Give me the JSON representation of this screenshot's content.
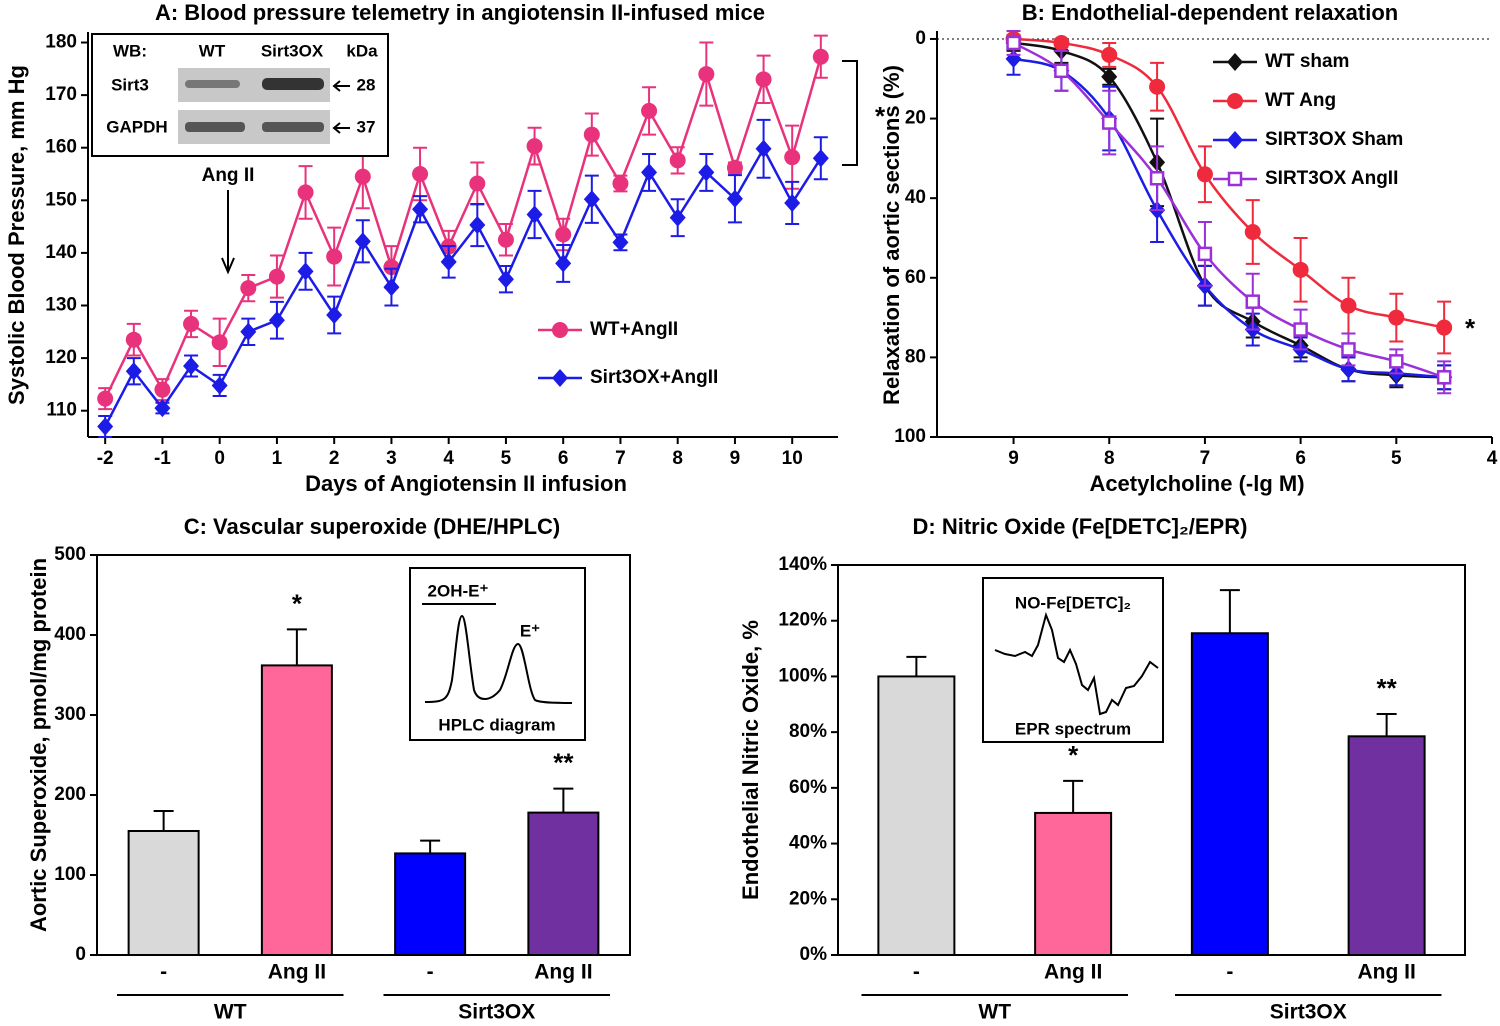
{
  "chart_data": [
    {
      "type": "line",
      "title": "A: Blood pressure telemetry in angiotensin II-infused mice",
      "x_label": "Days of Angiotensin II infusion",
      "y_label": "Systolic Blood Pressure, mm Hg",
      "x": [
        -2,
        -1.5,
        -1,
        -0.5,
        0,
        0.5,
        1,
        1.5,
        2,
        2.5,
        3,
        3.5,
        4,
        4.5,
        5,
        5.5,
        6,
        6.5,
        7,
        7.5,
        8,
        8.5,
        9,
        9.5,
        10,
        10.5
      ],
      "xlim": [
        -2.3,
        10.8
      ],
      "xticks": [
        -2,
        -1,
        0,
        1,
        2,
        3,
        4,
        5,
        6,
        7,
        8,
        9,
        10
      ],
      "ylim": [
        105,
        182
      ],
      "yticks": [
        110,
        120,
        130,
        140,
        150,
        160,
        170,
        180
      ],
      "series": [
        {
          "name": "WT+AngII",
          "color": "#e8327c",
          "marker": "circle",
          "values": [
            112.3,
            123.5,
            114,
            126.5,
            123,
            133.3,
            135.5,
            151.5,
            139.3,
            154.5,
            137.3,
            155,
            141.2,
            153.2,
            142.5,
            160.3,
            143.5,
            162.5,
            153.2,
            167,
            157.6,
            174,
            156.2,
            173,
            158.2,
            177.3
          ],
          "errors": [
            2,
            3,
            2,
            2.5,
            4.5,
            2.5,
            4,
            5,
            5.5,
            6,
            4,
            5,
            3,
            4,
            3,
            3.5,
            3,
            4,
            1.5,
            4.5,
            2.5,
            6,
            1,
            4.5,
            6,
            4
          ]
        },
        {
          "name": "Sirt3OX+AngII",
          "color": "#1c1ce6",
          "marker": "diamond",
          "values": [
            107,
            117.5,
            110.5,
            118.5,
            114.8,
            125,
            127.2,
            136.5,
            128.2,
            142.2,
            133.5,
            148.3,
            138.3,
            145.3,
            135,
            147.3,
            138,
            150.2,
            142,
            155.3,
            146.7,
            155.3,
            150.3,
            159.8,
            149.5,
            158
          ],
          "errors": [
            2,
            2.5,
            1,
            2,
            2,
            2.5,
            3.5,
            3.5,
            3.5,
            4,
            3.5,
            2.5,
            3,
            4,
            2.5,
            4.5,
            3.5,
            4.5,
            1.5,
            3.5,
            3.5,
            3.5,
            4.5,
            5.5,
            4,
            4
          ]
        }
      ],
      "arrow_label": "Ang II",
      "significance": "*",
      "inset": {
        "header": [
          "WB:",
          "WT",
          "Sirt3OX",
          "kDa"
        ],
        "rows": [
          [
            "Sirt3",
            "28"
          ],
          [
            "GAPDH",
            "37"
          ]
        ]
      }
    },
    {
      "type": "line",
      "title": "B: Endothelial-dependent relaxation",
      "x_label": "Acetylcholine (-lg M)",
      "y_label": "Relaxation of aortic sections (%)",
      "x": [
        9,
        8.5,
        8,
        7.5,
        7,
        6.5,
        6,
        5.5,
        5,
        4.5
      ],
      "xlim": [
        9.8,
        4
      ],
      "xticks": [
        9,
        8,
        7,
        6,
        5,
        4
      ],
      "ylim": [
        100,
        -2
      ],
      "yticks": [
        0,
        20,
        40,
        60,
        80,
        100
      ],
      "series": [
        {
          "name": "WT sham",
          "color": "#111111",
          "marker": "diamond",
          "values": [
            1,
            3,
            9.5,
            31,
            62,
            71,
            77,
            83,
            84.5,
            85
          ],
          "errors": [
            2,
            3,
            2,
            11,
            5,
            4,
            3,
            3,
            3,
            3
          ]
        },
        {
          "name": "WT  Ang",
          "color": "#ee2a3c",
          "marker": "circle",
          "values": [
            0,
            1,
            4,
            12,
            34,
            48.5,
            58,
            67,
            70,
            72.5
          ],
          "errors": [
            1,
            1,
            3,
            6,
            7,
            8,
            8,
            7,
            6,
            6.5
          ]
        },
        {
          "name": "SIRT3OX Sham",
          "color": "#1c1ce6",
          "marker": "diamond",
          "values": [
            5,
            8,
            20,
            43,
            62,
            73,
            78,
            83,
            84,
            85
          ],
          "errors": [
            4,
            5,
            8,
            8,
            5,
            4,
            3,
            3,
            3,
            3
          ]
        },
        {
          "name": "SIRT3OX AngII",
          "color": "#9b30d9",
          "marker": "square-open",
          "values": [
            1,
            8,
            21,
            35,
            54,
            66,
            73,
            78,
            81,
            85
          ],
          "errors": [
            3,
            5,
            8,
            8,
            8,
            7,
            5,
            4,
            3,
            4
          ]
        }
      ],
      "significance": "*"
    },
    {
      "type": "bar",
      "title": "C: Vascular superoxide (DHE/HPLC)",
      "y_label": "Aortic Superoxide, pmol/mg protein",
      "categories": [
        "-",
        "Ang II",
        "-",
        "Ang II"
      ],
      "groups": [
        {
          "name": "WT",
          "color": "#000000"
        },
        {
          "name": "Sirt3OX",
          "color": "#1c1ce6"
        }
      ],
      "values": [
        155,
        362,
        127,
        178
      ],
      "errors": [
        25,
        45,
        16,
        30
      ],
      "colors": [
        "#d9d9d9",
        "#ff6699",
        "#0000ff",
        "#7030a0"
      ],
      "significance": [
        null,
        "*",
        null,
        "**"
      ],
      "ylim": [
        0,
        500
      ],
      "yticks": [
        0,
        100,
        200,
        300,
        400,
        500
      ],
      "inset": {
        "title": "2OH-E⁺",
        "peak": "E⁺",
        "caption": "HPLC diagram"
      }
    },
    {
      "type": "bar",
      "title": "D: Nitric Oxide (Fe[DETC]₂/EPR)",
      "y_label": "Endothelial Nitric Oxide, %",
      "categories": [
        "-",
        "Ang II",
        "-",
        "Ang II"
      ],
      "groups": [
        {
          "name": "WT",
          "color": "#000000"
        },
        {
          "name": "Sirt3OX",
          "color": "#1c1ce6"
        }
      ],
      "values": [
        100,
        51,
        115.5,
        78.5
      ],
      "errors": [
        7,
        11.5,
        15.5,
        8
      ],
      "colors": [
        "#d9d9d9",
        "#ff6699",
        "#0000ff",
        "#7030a0"
      ],
      "significance": [
        null,
        "*",
        null,
        "**"
      ],
      "ylim": [
        0,
        140
      ],
      "yticks": [
        {
          "value": 0,
          "label": "0%"
        },
        {
          "value": 20,
          "label": "20%"
        },
        {
          "value": 40,
          "label": "40%"
        },
        {
          "value": 60,
          "label": "60%"
        },
        {
          "value": 80,
          "label": "80%"
        },
        {
          "value": 100,
          "label": "100%"
        },
        {
          "value": 120,
          "label": "120%"
        },
        {
          "value": 140,
          "label": "140%"
        }
      ],
      "inset": {
        "title": "NO-Fe[DETC]₂",
        "caption": "EPR spectrum"
      }
    }
  ]
}
